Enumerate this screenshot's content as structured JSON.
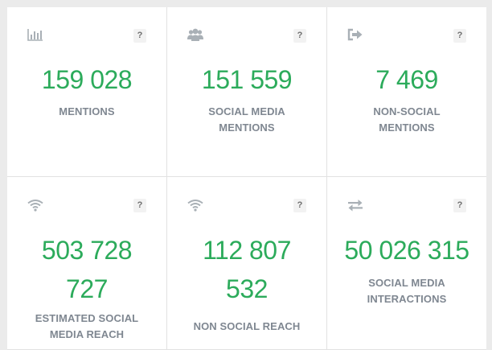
{
  "colors": {
    "value": "#2cab5b",
    "label": "#7f8791",
    "icon": "#a9b0b6",
    "help_bg": "#f2f2f2"
  },
  "cards": [
    {
      "icon": "bar-chart-icon",
      "value_lines": [
        "159 028"
      ],
      "label_lines": [
        "MENTIONS"
      ],
      "help": "?"
    },
    {
      "icon": "users-icon",
      "value_lines": [
        "151 559"
      ],
      "label_lines": [
        "SOCIAL MEDIA",
        "MENTIONS"
      ],
      "help": "?"
    },
    {
      "icon": "sign-out-icon",
      "value_lines": [
        "7 469"
      ],
      "label_lines": [
        "NON-SOCIAL",
        "MENTIONS"
      ],
      "help": "?"
    },
    {
      "icon": "wifi-icon",
      "value_lines": [
        "503 728",
        "727"
      ],
      "label_lines": [
        "ESTIMATED SOCIAL",
        "MEDIA REACH"
      ],
      "help": "?"
    },
    {
      "icon": "wifi-icon",
      "value_lines": [
        "112 807",
        "532"
      ],
      "label_lines": [
        "NON SOCIAL REACH"
      ],
      "help": "?"
    },
    {
      "icon": "exchange-icon",
      "value_lines": [
        "50 026 315"
      ],
      "label_lines": [
        "SOCIAL MEDIA",
        "INTERACTIONS"
      ],
      "help": "?"
    }
  ]
}
